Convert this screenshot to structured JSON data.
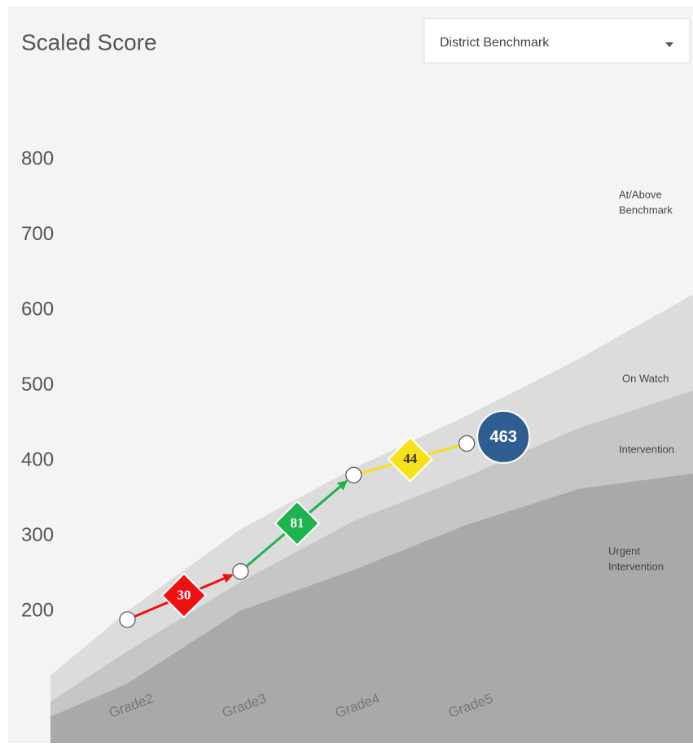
{
  "chart_data": {
    "type": "line",
    "title": "Scaled Score",
    "dropdown": "District Benchmark",
    "categories": [
      "Grade2",
      "Grade3",
      "Grade4",
      "Grade5"
    ],
    "xlim": [
      -0.68,
      5
    ],
    "ylim": [
      25,
      850
    ],
    "yticks": [
      200,
      300,
      400,
      500,
      600,
      700,
      800
    ],
    "series": [
      {
        "name": "Scaled Score",
        "color": "#ffffff",
        "values": [
          189,
          253,
          381,
          423
        ]
      }
    ],
    "growth": {
      "values": [
        30,
        81,
        44
      ],
      "colors": [
        "#ee1111",
        "#1db34f",
        "#f7e11a"
      ],
      "text_colors": [
        "#ffffff",
        "#ffffff",
        "#333333"
      ]
    },
    "current_score": {
      "value": 463,
      "color": "#2e5d91"
    },
    "bands": {
      "x": [
        -0.68,
        0,
        1,
        2,
        3,
        4,
        5
      ],
      "series": [
        {
          "label_lines": [
            "At/Above",
            "Benchmark"
          ],
          "color": "#f4f4f4"
        },
        {
          "label_lines": [
            "On Watch"
          ],
          "color": "#dcdcdc",
          "values": [
            115,
            200,
            309,
            390,
            460,
            536,
            621
          ]
        },
        {
          "label_lines": [
            "Intervention"
          ],
          "color": "#c6c6c6",
          "values": [
            80,
            147,
            239,
            320,
            379,
            444,
            493
          ]
        },
        {
          "label_lines": [
            "Urgent",
            "Intervention"
          ],
          "color": "#a9a9a9",
          "values": [
            60,
            104,
            201,
            255,
            315,
            363,
            383
          ]
        }
      ]
    }
  }
}
